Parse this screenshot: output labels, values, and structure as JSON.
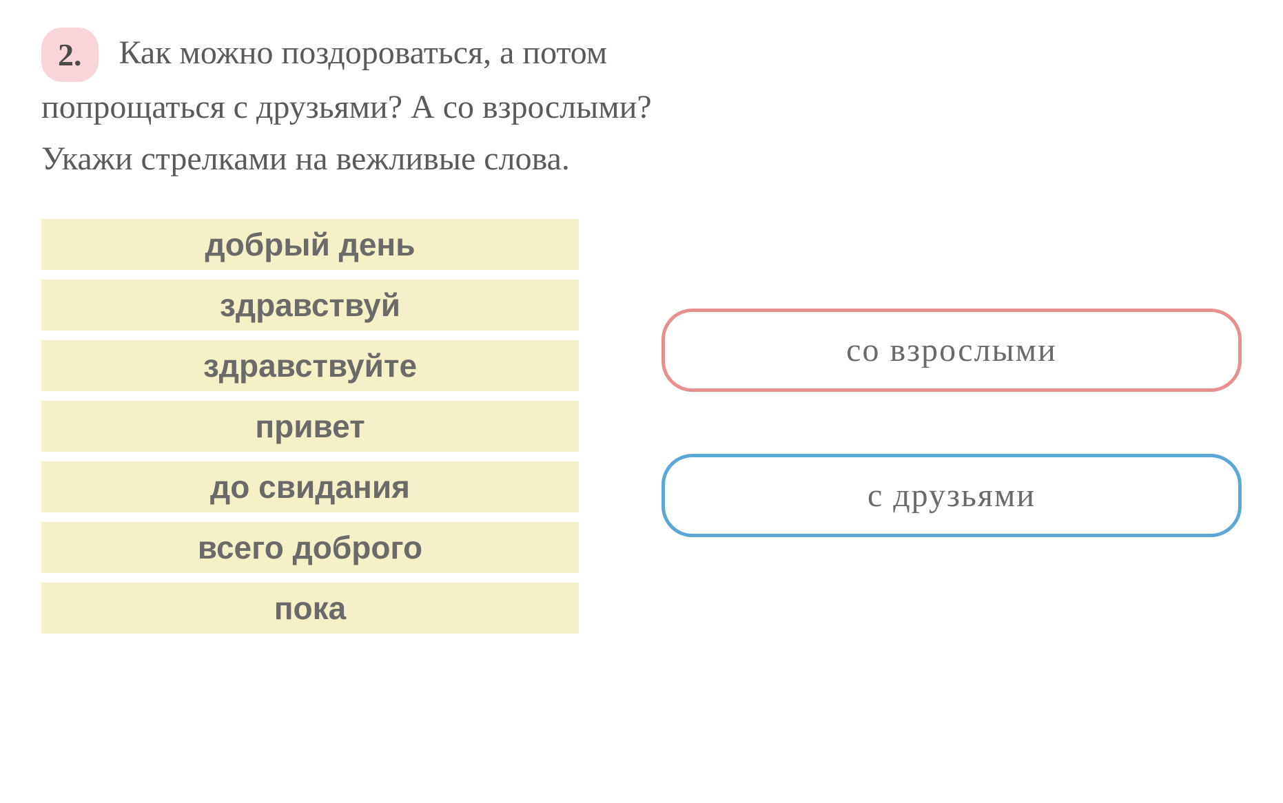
{
  "exercise": {
    "number": "2.",
    "question_line1": "Как можно поздороваться, а потом",
    "question_line2": "попрощаться с друзьями? А со взрослыми?",
    "question_line3": "Укажи стрелками на вежливые слова."
  },
  "phrases": [
    "добрый день",
    "здравствуй",
    "здравствуйте",
    "привет",
    "до свидания",
    "всего доброго",
    "пока"
  ],
  "targets": {
    "adults": "со  взрослыми",
    "friends": "с  друзьями"
  },
  "colors": {
    "number_badge_bg": "#f8d5d8",
    "phrase_bg": "#f5f0c8",
    "text_color": "#5a5a5a",
    "phrase_text_color": "#6a6a6a",
    "adults_border": "#e89090",
    "friends_border": "#5ba8d8",
    "background": "#ffffff"
  },
  "typography": {
    "question_fontsize": 48,
    "phrase_fontsize": 46,
    "target_fontsize": 48,
    "number_fontsize": 46
  },
  "layout": {
    "left_col_width": 780,
    "phrase_border_radius": 0,
    "target_border_radius": 45,
    "target_border_width": 5
  }
}
